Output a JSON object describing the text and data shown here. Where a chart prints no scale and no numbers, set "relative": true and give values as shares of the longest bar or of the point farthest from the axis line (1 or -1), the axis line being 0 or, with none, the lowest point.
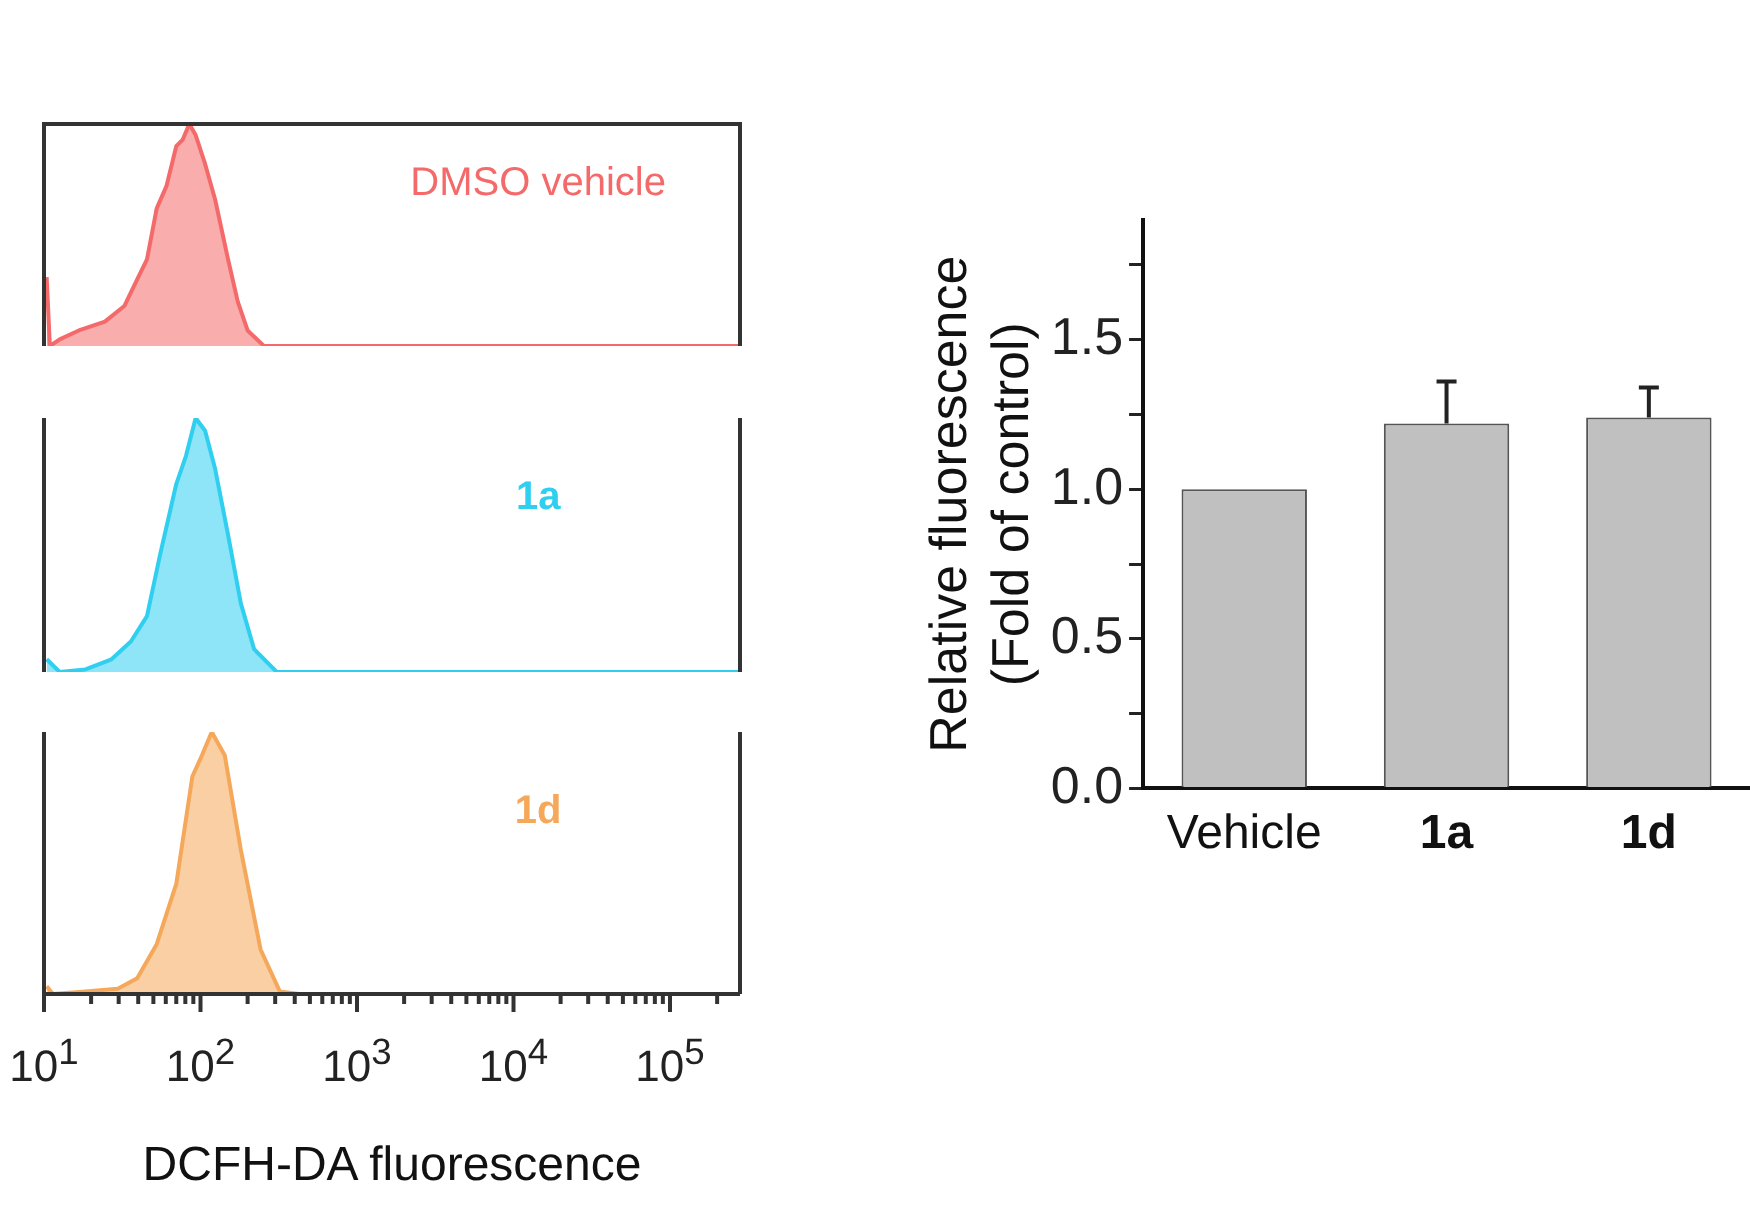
{
  "chart_data": [
    {
      "type": "area",
      "relative": true,
      "log": "x",
      "xlim": [
        10,
        280000
      ],
      "tick_labels": false,
      "x": [
        10.4,
        10.9,
        12.6,
        16.7,
        24.5,
        32.6,
        39.4,
        45.5,
        52.5,
        60.6,
        70.0,
        77.0,
        84.8,
        93.1,
        107,
        124,
        150,
        173,
        200,
        254,
        280000
      ],
      "series": [
        {
          "name": "DMSO vehicle",
          "color": "#f46a6a",
          "values": [
            0.31,
            0,
            0.03,
            0.07,
            0.11,
            0.18,
            0.3,
            0.39,
            0.62,
            0.72,
            0.9,
            0.93,
            1,
            0.95,
            0.82,
            0.66,
            0.39,
            0.2,
            0.07,
            0,
            0
          ]
        }
      ]
    },
    {
      "type": "area",
      "relative": true,
      "log": "x",
      "xlim": [
        10,
        280000
      ],
      "tick_labels": false,
      "x": [
        10.4,
        12.6,
        18.4,
        27.0,
        35.9,
        45.5,
        55.1,
        70.0,
        80.7,
        93.1,
        107,
        124,
        150,
        181,
        220,
        307,
        280000
      ],
      "series": [
        {
          "name": "1a",
          "color": "#30cff0",
          "values": [
            0.05,
            0,
            0.01,
            0.05,
            0.12,
            0.22,
            0.46,
            0.74,
            0.85,
            1,
            0.95,
            0.8,
            0.54,
            0.27,
            0.09,
            0,
            0
          ]
        }
      ]
    },
    {
      "type": "area",
      "relative": true,
      "log": "x",
      "xlim": [
        10,
        280000
      ],
      "tick_labels": "x",
      "xlabel": "DCFH-DA fluorescence",
      "xticks": [
        {
          "value": 10,
          "label": "10$^{1}$"
        },
        {
          "value": 20,
          "label": null
        },
        {
          "value": 30,
          "label": null
        },
        {
          "value": 40,
          "label": null
        },
        {
          "value": 50,
          "label": null
        },
        {
          "value": 60,
          "label": null
        },
        {
          "value": 70,
          "label": null
        },
        {
          "value": 80,
          "label": null
        },
        {
          "value": 90,
          "label": null
        },
        {
          "value": 100,
          "label": "10$^{2}$"
        },
        {
          "value": 200,
          "label": null
        },
        {
          "value": 300,
          "label": null
        },
        {
          "value": 400,
          "label": null
        },
        {
          "value": 500,
          "label": null
        },
        {
          "value": 600,
          "label": null
        },
        {
          "value": 700,
          "label": null
        },
        {
          "value": 800,
          "label": null
        },
        {
          "value": 900,
          "label": null
        },
        {
          "value": 1000,
          "label": "10$^{3}$"
        },
        {
          "value": 2000,
          "label": null
        },
        {
          "value": 3000,
          "label": null
        },
        {
          "value": 4000,
          "label": null
        },
        {
          "value": 5000,
          "label": null
        },
        {
          "value": 6000,
          "label": null
        },
        {
          "value": 7000,
          "label": null
        },
        {
          "value": 8000,
          "label": null
        },
        {
          "value": 9000,
          "label": null
        },
        {
          "value": 10000,
          "label": "10$^{4}$"
        },
        {
          "value": 20000,
          "label": null
        },
        {
          "value": 30000,
          "label": null
        },
        {
          "value": 40000,
          "label": null
        },
        {
          "value": 50000,
          "label": null
        },
        {
          "value": 60000,
          "label": null
        },
        {
          "value": 70000,
          "label": null
        },
        {
          "value": 80000,
          "label": null
        },
        {
          "value": 90000,
          "label": null
        },
        {
          "value": 100000,
          "label": "10$^{5}$"
        },
        {
          "value": 200000,
          "label": null
        }
      ],
      "x": [
        10.4,
        11.4,
        18.4,
        29.6,
        39.4,
        52.5,
        70.0,
        88.7,
        102,
        118,
        143,
        181,
        242,
        321,
        428,
        280000
      ],
      "series": [
        {
          "name": "1d",
          "color": "#f5a85a",
          "values": [
            0.03,
            0,
            0.01,
            0.02,
            0.06,
            0.19,
            0.42,
            0.83,
            0.91,
            1,
            0.91,
            0.55,
            0.17,
            0.01,
            0,
            0
          ]
        }
      ]
    },
    {
      "type": "bar",
      "ylabel": "Relative fluorescence\n(Fold of control)",
      "categories": [
        "Vehicle",
        "1a",
        "1d"
      ],
      "values": [
        1.0,
        1.22,
        1.24
      ],
      "errors": [
        null,
        [
          1.22,
          1.36
        ],
        [
          1.24,
          1.34
        ]
      ],
      "color": "#c0c0c0",
      "ylim": [
        0,
        1.9
      ],
      "yticks": [
        {
          "value": 0,
          "label": "0.0"
        },
        {
          "value": 0.25,
          "label": null
        },
        {
          "value": 0.5,
          "label": "0.5"
        },
        {
          "value": 0.75,
          "label": null
        },
        {
          "value": 1,
          "label": "1.0"
        },
        {
          "value": 1.25,
          "label": null
        },
        {
          "value": 1.5,
          "label": "1.5"
        },
        {
          "value": 1.75,
          "label": null
        }
      ]
    }
  ]
}
